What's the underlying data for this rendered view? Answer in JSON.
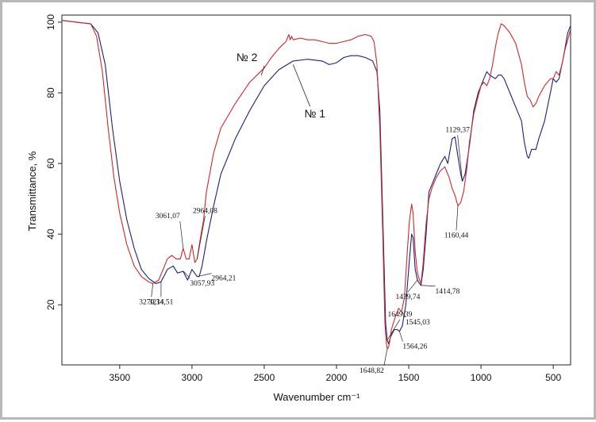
{
  "chart_data": {
    "type": "line",
    "title": "",
    "xlabel": "Wavenumber cm⁻¹",
    "ylabel": "Transmittance, %",
    "xlim": [
      3900,
      380
    ],
    "ylim": [
      3,
      102
    ],
    "x_reversed": true,
    "grid": false,
    "x_ticks": [
      3500,
      3000,
      2500,
      2000,
      1500,
      1000,
      500
    ],
    "y_ticks": [
      20,
      40,
      60,
      80,
      100
    ],
    "series": [
      {
        "name": "№ 1",
        "color": "#1e1e7a",
        "points": [
          [
            3900,
            100.5
          ],
          [
            3800,
            100
          ],
          [
            3700,
            99.5
          ],
          [
            3650,
            97
          ],
          [
            3600,
            88
          ],
          [
            3550,
            70
          ],
          [
            3500,
            55
          ],
          [
            3450,
            44
          ],
          [
            3400,
            36
          ],
          [
            3350,
            30
          ],
          [
            3300,
            27.5
          ],
          [
            3250,
            26
          ],
          [
            3214,
            26.5
          ],
          [
            3170,
            30
          ],
          [
            3130,
            31
          ],
          [
            3100,
            29
          ],
          [
            3061,
            29.5
          ],
          [
            3030,
            27
          ],
          [
            3000,
            30
          ],
          [
            2964,
            28
          ],
          [
            2950,
            28
          ],
          [
            2930,
            31
          ],
          [
            2900,
            38
          ],
          [
            2850,
            48
          ],
          [
            2800,
            57
          ],
          [
            2700,
            67
          ],
          [
            2600,
            75
          ],
          [
            2500,
            82
          ],
          [
            2400,
            86.5
          ],
          [
            2300,
            89
          ],
          [
            2200,
            89.5
          ],
          [
            2100,
            89
          ],
          [
            2050,
            88
          ],
          [
            2000,
            88.5
          ],
          [
            1950,
            90
          ],
          [
            1900,
            90.5
          ],
          [
            1850,
            90.5
          ],
          [
            1800,
            90
          ],
          [
            1750,
            89
          ],
          [
            1720,
            86
          ],
          [
            1700,
            75
          ],
          [
            1680,
            45
          ],
          [
            1660,
            15
          ],
          [
            1649,
            10
          ],
          [
            1640,
            9
          ],
          [
            1625,
            11
          ],
          [
            1600,
            13
          ],
          [
            1580,
            13
          ],
          [
            1564,
            12.5
          ],
          [
            1545,
            14
          ],
          [
            1520,
            20
          ],
          [
            1495,
            33
          ],
          [
            1480,
            40
          ],
          [
            1470,
            39
          ],
          [
            1455,
            30
          ],
          [
            1440,
            27
          ],
          [
            1425,
            26
          ],
          [
            1415,
            25.5
          ],
          [
            1400,
            30
          ],
          [
            1380,
            40
          ],
          [
            1360,
            52
          ],
          [
            1340,
            54
          ],
          [
            1310,
            57
          ],
          [
            1280,
            60
          ],
          [
            1250,
            62
          ],
          [
            1230,
            60
          ],
          [
            1200,
            67
          ],
          [
            1180,
            67.5
          ],
          [
            1160,
            62
          ],
          [
            1140,
            57
          ],
          [
            1129,
            55
          ],
          [
            1110,
            57
          ],
          [
            1080,
            65
          ],
          [
            1050,
            75
          ],
          [
            1020,
            80
          ],
          [
            1000,
            82
          ],
          [
            980,
            84
          ],
          [
            960,
            86
          ],
          [
            940,
            85
          ],
          [
            920,
            84.5
          ],
          [
            900,
            84
          ],
          [
            880,
            85
          ],
          [
            860,
            85
          ],
          [
            840,
            84
          ],
          [
            800,
            80
          ],
          [
            760,
            76
          ],
          [
            720,
            72
          ],
          [
            700,
            66
          ],
          [
            680,
            62
          ],
          [
            670,
            61.5
          ],
          [
            650,
            64
          ],
          [
            620,
            64
          ],
          [
            600,
            67
          ],
          [
            560,
            72
          ],
          [
            520,
            80
          ],
          [
            500,
            84
          ],
          [
            480,
            83
          ],
          [
            460,
            84
          ],
          [
            430,
            90
          ],
          [
            400,
            97
          ],
          [
            380,
            99
          ]
        ]
      },
      {
        "name": "№ 2",
        "color": "#d0282a",
        "points": [
          [
            3900,
            100.5
          ],
          [
            3800,
            100
          ],
          [
            3700,
            99.5
          ],
          [
            3660,
            96
          ],
          [
            3620,
            86
          ],
          [
            3580,
            70
          ],
          [
            3540,
            56
          ],
          [
            3500,
            46
          ],
          [
            3450,
            37
          ],
          [
            3400,
            31
          ],
          [
            3350,
            28
          ],
          [
            3300,
            26.5
          ],
          [
            3270,
            26
          ],
          [
            3230,
            27
          ],
          [
            3200,
            30
          ],
          [
            3170,
            33
          ],
          [
            3140,
            34
          ],
          [
            3110,
            33
          ],
          [
            3080,
            33
          ],
          [
            3061,
            36
          ],
          [
            3040,
            33
          ],
          [
            3020,
            33
          ],
          [
            3000,
            37
          ],
          [
            2980,
            32
          ],
          [
            2964,
            33
          ],
          [
            2945,
            38
          ],
          [
            2920,
            44
          ],
          [
            2900,
            52
          ],
          [
            2850,
            63
          ],
          [
            2800,
            70
          ],
          [
            2700,
            77
          ],
          [
            2600,
            83
          ],
          [
            2500,
            87
          ],
          [
            2450,
            90
          ],
          [
            2400,
            92.5
          ],
          [
            2350,
            94.5
          ],
          [
            2330,
            96.5
          ],
          [
            2320,
            95
          ],
          [
            2310,
            96
          ],
          [
            2300,
            95
          ],
          [
            2250,
            95.5
          ],
          [
            2200,
            95
          ],
          [
            2150,
            95
          ],
          [
            2100,
            94.5
          ],
          [
            2050,
            94
          ],
          [
            2000,
            94
          ],
          [
            1950,
            94.5
          ],
          [
            1900,
            95
          ],
          [
            1850,
            96
          ],
          [
            1800,
            96.5
          ],
          [
            1760,
            96
          ],
          [
            1740,
            94.5
          ],
          [
            1720,
            88
          ],
          [
            1700,
            70
          ],
          [
            1680,
            40
          ],
          [
            1665,
            15
          ],
          [
            1655,
            9
          ],
          [
            1648,
            7.5
          ],
          [
            1640,
            8
          ],
          [
            1630,
            10
          ],
          [
            1620,
            13
          ],
          [
            1605,
            15
          ],
          [
            1590,
            17
          ],
          [
            1570,
            19
          ],
          [
            1550,
            18
          ],
          [
            1530,
            22
          ],
          [
            1510,
            35
          ],
          [
            1495,
            44
          ],
          [
            1480,
            48.5
          ],
          [
            1470,
            46
          ],
          [
            1455,
            35
          ],
          [
            1440,
            29
          ],
          [
            1425,
            27
          ],
          [
            1415,
            26
          ],
          [
            1400,
            32
          ],
          [
            1380,
            43
          ],
          [
            1360,
            50
          ],
          [
            1340,
            53
          ],
          [
            1310,
            56
          ],
          [
            1280,
            58
          ],
          [
            1250,
            59
          ],
          [
            1220,
            56
          ],
          [
            1200,
            53
          ],
          [
            1180,
            51
          ],
          [
            1160,
            48
          ],
          [
            1140,
            49
          ],
          [
            1120,
            52
          ],
          [
            1100,
            58
          ],
          [
            1080,
            66
          ],
          [
            1050,
            74
          ],
          [
            1020,
            79
          ],
          [
            1000,
            82
          ],
          [
            980,
            83
          ],
          [
            960,
            82
          ],
          [
            940,
            84
          ],
          [
            920,
            88
          ],
          [
            900,
            93
          ],
          [
            880,
            97
          ],
          [
            860,
            99.5
          ],
          [
            840,
            99
          ],
          [
            800,
            97
          ],
          [
            760,
            94
          ],
          [
            720,
            88
          ],
          [
            700,
            83
          ],
          [
            680,
            79
          ],
          [
            660,
            78
          ],
          [
            640,
            76
          ],
          [
            620,
            77
          ],
          [
            600,
            79
          ],
          [
            560,
            82
          ],
          [
            520,
            84
          ],
          [
            500,
            84
          ],
          [
            480,
            86
          ],
          [
            460,
            85
          ],
          [
            440,
            88
          ],
          [
            420,
            92
          ],
          [
            400,
            95
          ],
          [
            380,
            98
          ]
        ]
      }
    ],
    "series_labels": [
      {
        "text": "№ 1",
        "x": 2150,
        "y": 73
      },
      {
        "text": "№ 2",
        "x": 2620,
        "y": 89
      }
    ],
    "annotations": [
      {
        "text": "2964,08",
        "x": 2964,
        "y": 33
      },
      {
        "text": "3061,07",
        "x": 3061,
        "y": 36
      },
      {
        "text": "2964,21",
        "x": 2964,
        "y": 28
      },
      {
        "text": "3057,93",
        "x": 3058,
        "y": 29.5
      },
      {
        "text": "3214,51",
        "x": 3214,
        "y": 26.5
      },
      {
        "text": "3270,34",
        "x": 3270,
        "y": 26
      },
      {
        "text": "1649,39",
        "x": 1649,
        "y": 10
      },
      {
        "text": "1648,82",
        "x": 1649,
        "y": 7.5
      },
      {
        "text": "1545,03",
        "x": 1545,
        "y": 18
      },
      {
        "text": "1564,26",
        "x": 1564,
        "y": 12.5
      },
      {
        "text": "1439,74",
        "x": 1440,
        "y": 27
      },
      {
        "text": "1414,78",
        "x": 1415,
        "y": 25.5
      },
      {
        "text": "1129,37",
        "x": 1129,
        "y": 55
      },
      {
        "text": "1160,44",
        "x": 1160,
        "y": 48
      }
    ]
  }
}
